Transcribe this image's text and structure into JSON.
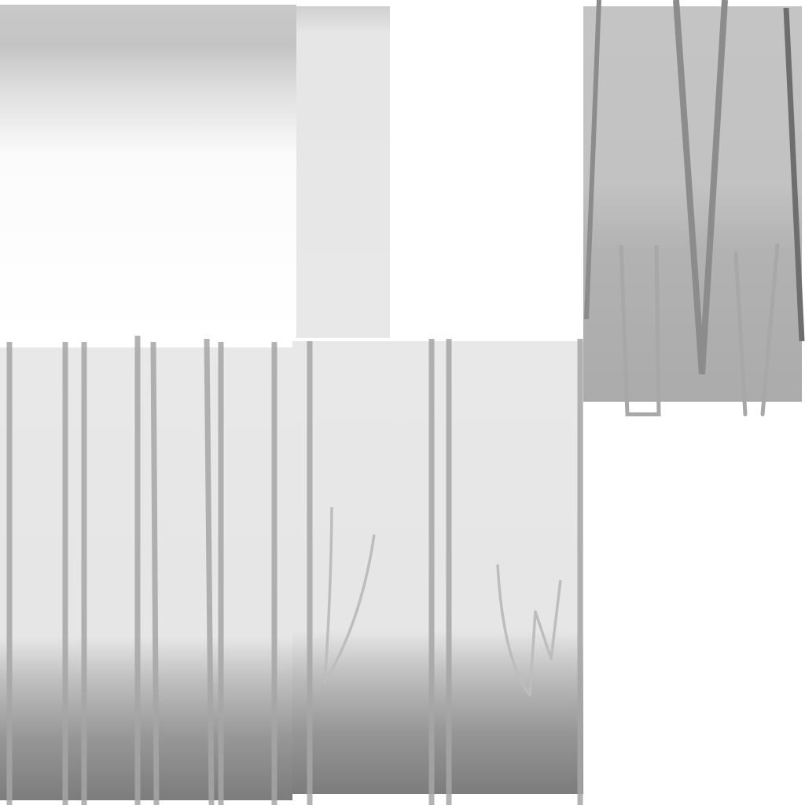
{
  "texture": {
    "background": "#ffffff",
    "panels": [
      {
        "name": "top-left-gradient-panel",
        "colors": [
          "#c1c1c1",
          "#ededed",
          "#ffffff"
        ]
      },
      {
        "name": "top-center-strip",
        "colors": [
          "#d3d3d3",
          "#e8e8e8"
        ]
      },
      {
        "name": "top-right-grass-panel",
        "colors": [
          "#c4c4c4",
          "#aaaaaa"
        ]
      },
      {
        "name": "bottom-left-bark-panel",
        "colors": [
          "#e8e8e8",
          "#7a7a7a"
        ]
      },
      {
        "name": "bottom-center-bark-panel",
        "colors": [
          "#e8e8e8",
          "#7c7c7c"
        ]
      }
    ],
    "stroke_colors": {
      "light": "#c4c4c4",
      "mid": "#a8a8a8",
      "dark": "#8c8c8c",
      "darkest": "#6e6e6e"
    }
  }
}
